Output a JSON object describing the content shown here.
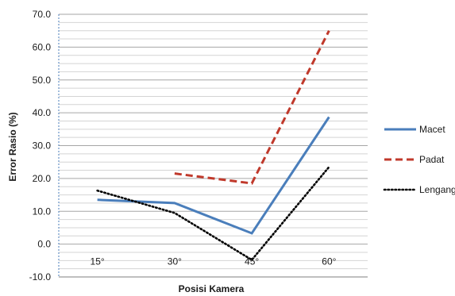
{
  "chart_data": {
    "type": "line",
    "title": "",
    "xlabel": "Posisi Kamera",
    "ylabel": "Error Rasio  (%)",
    "categories": [
      "15°",
      "30°",
      "45°",
      "60°"
    ],
    "ylim": [
      -10,
      70
    ],
    "ytick_labels": [
      "-10.0",
      "0.0",
      "10.0",
      "20.0",
      "30.0",
      "40.0",
      "50.0",
      "60.0",
      "70.0"
    ],
    "grid": true,
    "legend_position": "right",
    "series": [
      {
        "name": "Macet",
        "values": [
          13.5,
          12.5,
          3.3,
          38.7
        ],
        "color": "#4a7ebb",
        "style": "solid"
      },
      {
        "name": "Padat",
        "values": [
          null,
          21.5,
          18.5,
          65.0
        ],
        "color": "#c0392b",
        "style": "dashed"
      },
      {
        "name": "Lengang",
        "values": [
          16.3,
          9.5,
          -4.8,
          23.5
        ],
        "color": "#000000",
        "style": "dotted"
      }
    ]
  }
}
